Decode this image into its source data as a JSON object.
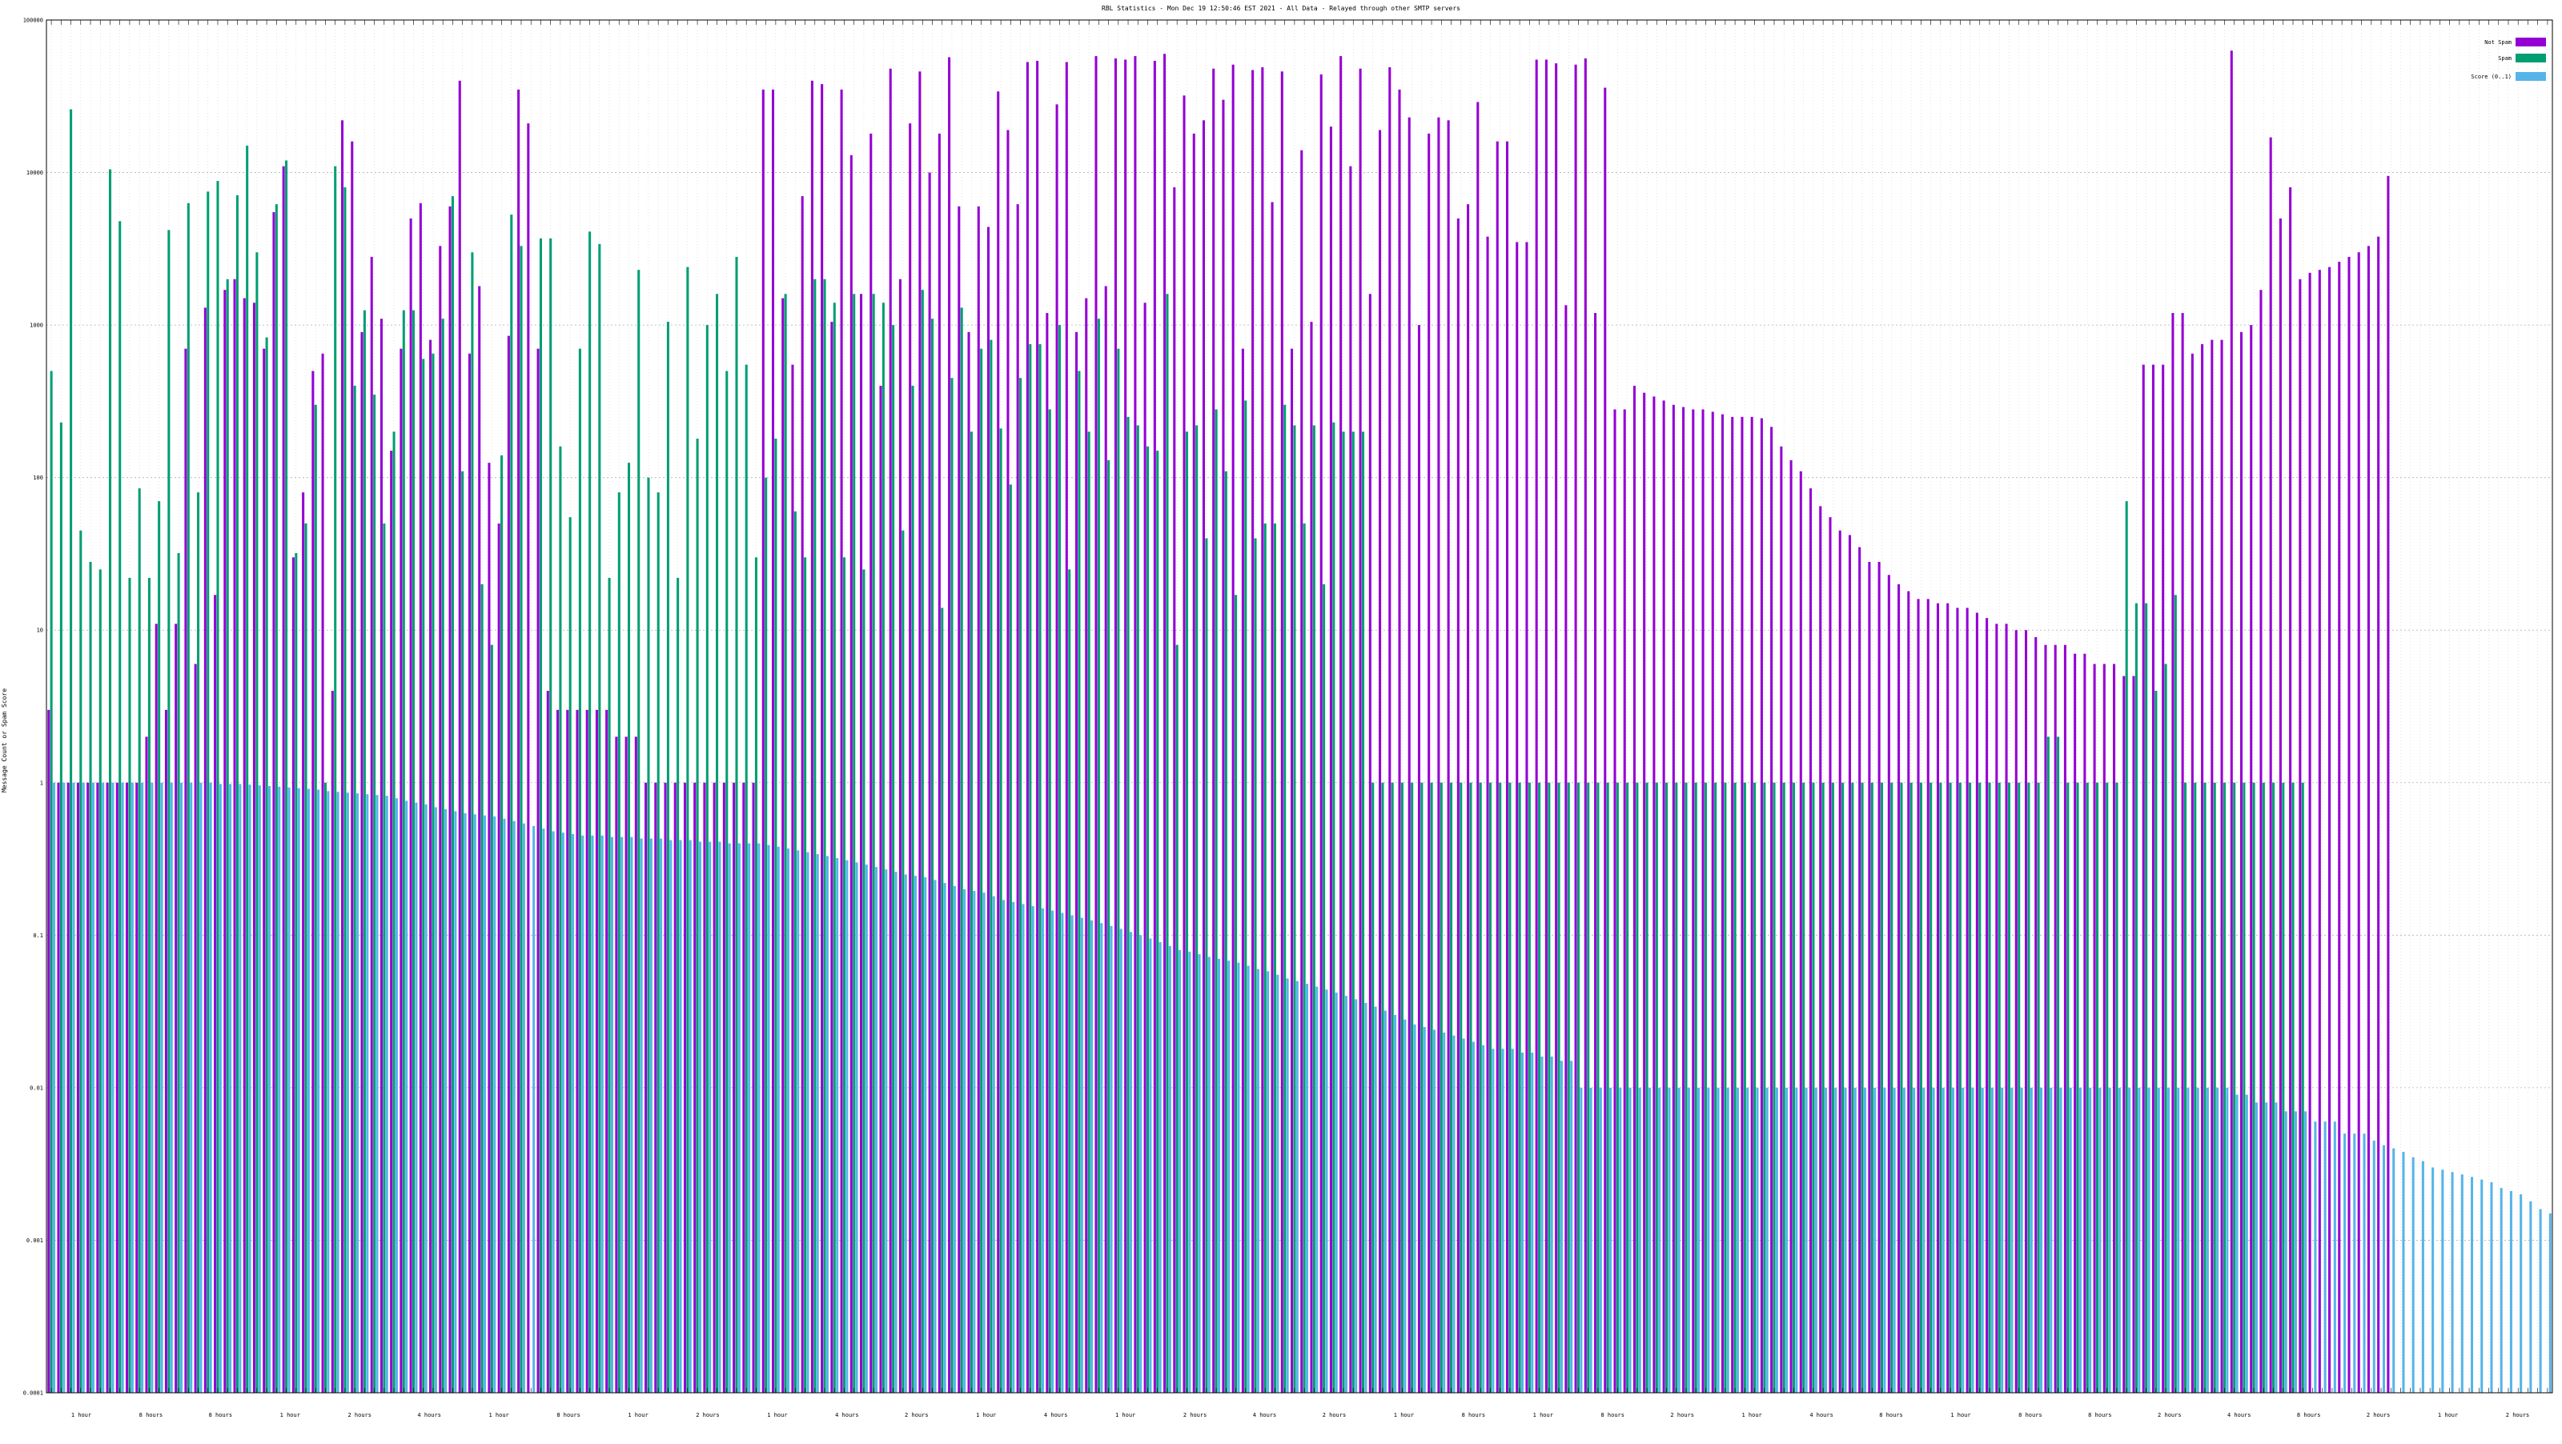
{
  "chart_data": {
    "type": "bar",
    "title": "RBL Statistics - Mon Dec 19 12:50:46 EST 2021 - All Data - Relayed through other SMTP servers",
    "ylabel": "Message Count or Spam Score",
    "xlabel": "",
    "yscale": "log",
    "ylim": [
      0.0001,
      100000
    ],
    "y_ticks": [
      "0.0001",
      "0.001",
      "0.01",
      "0.1",
      "1",
      "10",
      "100",
      "1000",
      "10000",
      "100000"
    ],
    "grid": true,
    "legend_position": "top-right",
    "bar_count": 256,
    "series": [
      {
        "name": "Not Spam",
        "color": "#9400d3",
        "values": [
          3,
          1,
          1,
          1,
          1,
          1,
          1,
          1,
          1,
          1,
          2,
          11,
          3,
          11,
          700,
          6,
          1300,
          17,
          1700,
          2000,
          1500,
          1400,
          700,
          5500,
          11000,
          30,
          80,
          500,
          650,
          4,
          22000,
          16000,
          900,
          2800,
          1100,
          150,
          700,
          5000,
          6300,
          800,
          3300,
          6000,
          40000,
          650,
          1800,
          125,
          50,
          850,
          35000,
          21000,
          700,
          4,
          3,
          3,
          3,
          3,
          3,
          3,
          2,
          2,
          2,
          1,
          1,
          1,
          1,
          1,
          1,
          1,
          1,
          1,
          1,
          1,
          1,
          35000,
          35000,
          1500,
          550,
          7000,
          40000,
          38000,
          1050,
          35000,
          13000,
          1600,
          18000,
          400,
          48000,
          2000,
          21000,
          46000,
          10000,
          18000,
          57000,
          6000,
          900,
          6000,
          4400,
          34000,
          19000,
          6200,
          53000,
          54000,
          1200,
          28000,
          53000,
          900,
          1500,
          58000,
          1800,
          56000,
          55000,
          58000,
          1400,
          54000,
          60000,
          8000,
          32000,
          18000,
          22000,
          48000,
          30000,
          51000,
          700,
          47000,
          49000,
          6400,
          46000,
          700,
          14000,
          1050,
          44000,
          20000,
          58000,
          11000,
          48000,
          1600,
          19000,
          49000,
          35000,
          23000,
          1000,
          18000,
          23000,
          22000,
          5000,
          6200,
          29000,
          3800,
          16000,
          16000,
          3500,
          3500,
          55000,
          55000,
          52000,
          1350,
          51000,
          56000,
          1200,
          36000,
          280,
          280,
          400,
          360,
          340,
          320,
          300,
          290,
          280,
          280,
          270,
          260,
          250,
          250,
          250,
          245,
          215,
          160,
          130,
          110,
          85,
          65,
          55,
          45,
          42,
          35,
          28,
          28,
          23,
          20,
          18,
          16,
          16,
          15,
          15,
          14,
          14,
          13,
          12,
          11,
          11,
          10,
          10,
          9,
          8,
          8,
          8,
          7,
          7,
          6,
          6,
          6,
          5,
          5,
          550,
          550,
          550,
          1200,
          1200,
          650,
          750,
          800,
          800,
          63000,
          900,
          1000,
          1700,
          17000,
          5000,
          8000,
          2000,
          2200,
          2300,
          2400,
          2600,
          2800,
          3000,
          3300,
          3800,
          9500
        ]
      },
      {
        "name": "Spam",
        "color": "#009e73",
        "values": [
          500,
          230,
          26000,
          45,
          28,
          25,
          10500,
          4800,
          22,
          85,
          22,
          70,
          4200,
          32,
          6300,
          80,
          7500,
          8800,
          2000,
          7100,
          15000,
          3000,
          830,
          6200,
          12000,
          32,
          50,
          300,
          1,
          11000,
          8000,
          400,
          1250,
          350,
          50,
          200,
          1250,
          1250,
          600,
          650,
          1100,
          7000,
          110,
          3000,
          20,
          8,
          140,
          5300,
          3300,
          0.0001,
          3700,
          3700,
          160,
          55,
          700,
          4100,
          3400,
          22,
          80,
          125,
          2300,
          100,
          80,
          1050,
          22,
          2400,
          180,
          1000,
          1600,
          500,
          2800,
          550,
          30,
          100,
          180,
          1600,
          60,
          30,
          2000,
          2000,
          1400,
          30,
          1600,
          25,
          1600,
          1400,
          1000,
          45,
          400,
          1700,
          1100,
          14,
          450,
          1300,
          200,
          700,
          800,
          210,
          90,
          450,
          750,
          750,
          280,
          1000,
          25,
          500,
          200,
          1100,
          130,
          700,
          250,
          220,
          160,
          150,
          1600,
          8,
          200,
          220,
          40,
          280,
          110,
          17,
          320,
          40,
          50,
          50,
          300,
          220,
          50,
          220,
          20,
          230,
          200,
          200,
          200,
          1,
          1,
          1,
          1,
          1,
          1,
          1,
          1,
          1,
          1,
          1,
          1,
          1,
          1,
          1,
          1,
          1,
          1,
          1,
          1,
          1,
          1,
          1,
          1,
          1,
          1,
          1,
          1,
          1,
          1,
          1,
          1,
          1,
          1,
          1,
          1,
          1,
          1,
          1,
          1,
          1,
          1,
          1,
          1,
          1,
          1,
          1,
          1,
          1,
          1,
          1,
          1,
          1,
          1,
          1,
          1,
          1,
          1,
          1,
          1,
          1,
          1,
          1,
          1,
          1,
          1,
          1,
          1,
          1,
          2,
          2,
          1,
          1,
          1,
          1,
          1,
          1,
          70,
          15,
          15,
          4,
          6,
          17,
          1,
          1,
          1,
          1,
          1,
          1,
          1,
          1,
          1,
          1,
          1,
          1,
          1
        ]
      },
      {
        "name": "Score (0..1)",
        "color": "#56b4e9",
        "values": [
          1,
          1,
          1,
          1,
          1,
          1,
          1,
          1,
          1,
          1,
          1,
          1,
          1,
          1,
          1,
          1,
          1,
          0.98,
          0.98,
          0.98,
          0.97,
          0.96,
          0.95,
          0.94,
          0.93,
          0.92,
          0.91,
          0.9,
          0.88,
          0.87,
          0.86,
          0.85,
          0.84,
          0.83,
          0.82,
          0.79,
          0.76,
          0.74,
          0.72,
          0.69,
          0.67,
          0.65,
          0.63,
          0.62,
          0.61,
          0.6,
          0.58,
          0.56,
          0.54,
          0.52,
          0.5,
          0.48,
          0.47,
          0.46,
          0.45,
          0.45,
          0.45,
          0.44,
          0.44,
          0.44,
          0.43,
          0.43,
          0.43,
          0.42,
          0.42,
          0.42,
          0.41,
          0.41,
          0.41,
          0.4,
          0.4,
          0.4,
          0.4,
          0.39,
          0.38,
          0.37,
          0.36,
          0.35,
          0.34,
          0.33,
          0.32,
          0.31,
          0.3,
          0.29,
          0.28,
          0.27,
          0.26,
          0.25,
          0.245,
          0.24,
          0.23,
          0.22,
          0.21,
          0.2,
          0.195,
          0.19,
          0.18,
          0.17,
          0.165,
          0.16,
          0.155,
          0.15,
          0.145,
          0.14,
          0.135,
          0.13,
          0.125,
          0.12,
          0.115,
          0.11,
          0.105,
          0.1,
          0.095,
          0.09,
          0.085,
          0.08,
          0.078,
          0.075,
          0.072,
          0.07,
          0.068,
          0.066,
          0.063,
          0.06,
          0.058,
          0.055,
          0.052,
          0.05,
          0.048,
          0.046,
          0.044,
          0.042,
          0.04,
          0.038,
          0.036,
          0.034,
          0.032,
          0.03,
          0.028,
          0.026,
          0.025,
          0.024,
          0.023,
          0.022,
          0.021,
          0.02,
          0.019,
          0.018,
          0.018,
          0.018,
          0.017,
          0.017,
          0.016,
          0.016,
          0.015,
          0.015,
          0.01,
          0.01,
          0.01,
          0.01,
          0.01,
          0.01,
          0.01,
          0.01,
          0.01,
          0.01,
          0.01,
          0.01,
          0.01,
          0.01,
          0.01,
          0.01,
          0.01,
          0.01,
          0.01,
          0.01,
          0.01,
          0.01,
          0.01,
          0.01,
          0.01,
          0.01,
          0.01,
          0.01,
          0.01,
          0.01,
          0.01,
          0.01,
          0.01,
          0.01,
          0.01,
          0.01,
          0.01,
          0.01,
          0.01,
          0.01,
          0.01,
          0.01,
          0.01,
          0.01,
          0.01,
          0.01,
          0.01,
          0.01,
          0.01,
          0.01,
          0.01,
          0.01,
          0.01,
          0.01,
          0.01,
          0.01,
          0.01,
          0.01,
          0.01,
          0.01,
          0.01,
          0.01,
          0.01,
          0.01,
          0.01,
          0.01,
          0.01,
          0.009,
          0.009,
          0.008,
          0.008,
          0.008,
          0.007,
          0.007,
          0.007,
          0.006,
          0.006,
          0.006,
          0.005,
          0.005,
          0.005,
          0.0045,
          0.0042,
          0.004,
          0.0038,
          0.0035,
          0.0033,
          0.003,
          0.0029,
          0.0028,
          0.0027,
          0.0026,
          0.0025,
          0.0024,
          0.0022,
          0.0021,
          0.002,
          0.0018,
          0.0016,
          0.0015,
          0.0014,
          0.0012
        ]
      }
    ],
    "x_group_labels": [
      "1 hour",
      "8 hours",
      "8 hours",
      "1 hour",
      "2 hours",
      "4 hours",
      "1 hour",
      "8 hours",
      "1 hour",
      "2 hours",
      "1 hour",
      "4 hours",
      "2 hours",
      "1 hour",
      "4 hours",
      "1 hour",
      "2 hours",
      "4 hours",
      "2 hours",
      "1 hour",
      "8 hours",
      "1 hour",
      "8 hours",
      "2 hours",
      "1 hour",
      "4 hours",
      "8 hours",
      "1 hour",
      "8 hours",
      "8 hours",
      "2 hours",
      "4 hours",
      "8 hours",
      "2 hours",
      "1 hour",
      "2 hours"
    ]
  }
}
